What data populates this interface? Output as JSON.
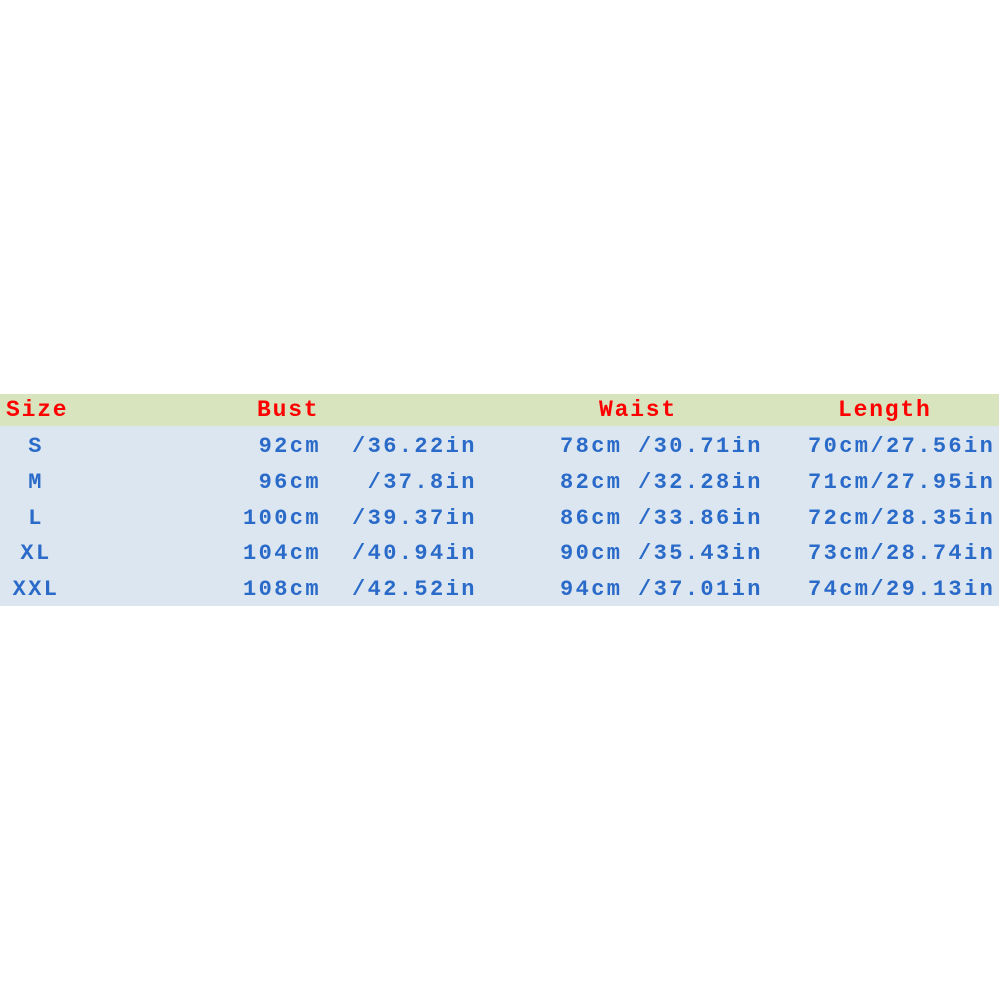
{
  "table": {
    "headers": {
      "size": "Size",
      "bust": "Bust",
      "waist": "Waist",
      "length": "Length"
    },
    "colors": {
      "header_bg": "#d7e4bd",
      "body_bg": "#dce6f1",
      "header_text": "#ff0000",
      "body_text": "#2a6ac8"
    },
    "rows": [
      {
        "size": "S",
        "bust_cm": "92cm",
        "bust_in": "/36.22in",
        "waist": "78cm /30.71in",
        "length": "70cm/27.56in"
      },
      {
        "size": "M",
        "bust_cm": "96cm",
        "bust_in": " /37.8in",
        "waist": "82cm /32.28in",
        "length": "71cm/27.95in"
      },
      {
        "size": "L",
        "bust_cm": "100cm",
        "bust_in": "/39.37in",
        "waist": "86cm /33.86in",
        "length": "72cm/28.35in"
      },
      {
        "size": "XL",
        "bust_cm": "104cm",
        "bust_in": "/40.94in",
        "waist": "90cm /35.43in",
        "length": "73cm/28.74in"
      },
      {
        "size": "XXL",
        "bust_cm": "108cm",
        "bust_in": "/42.52in",
        "waist": "94cm /37.01in",
        "length": "74cm/29.13in"
      }
    ]
  }
}
